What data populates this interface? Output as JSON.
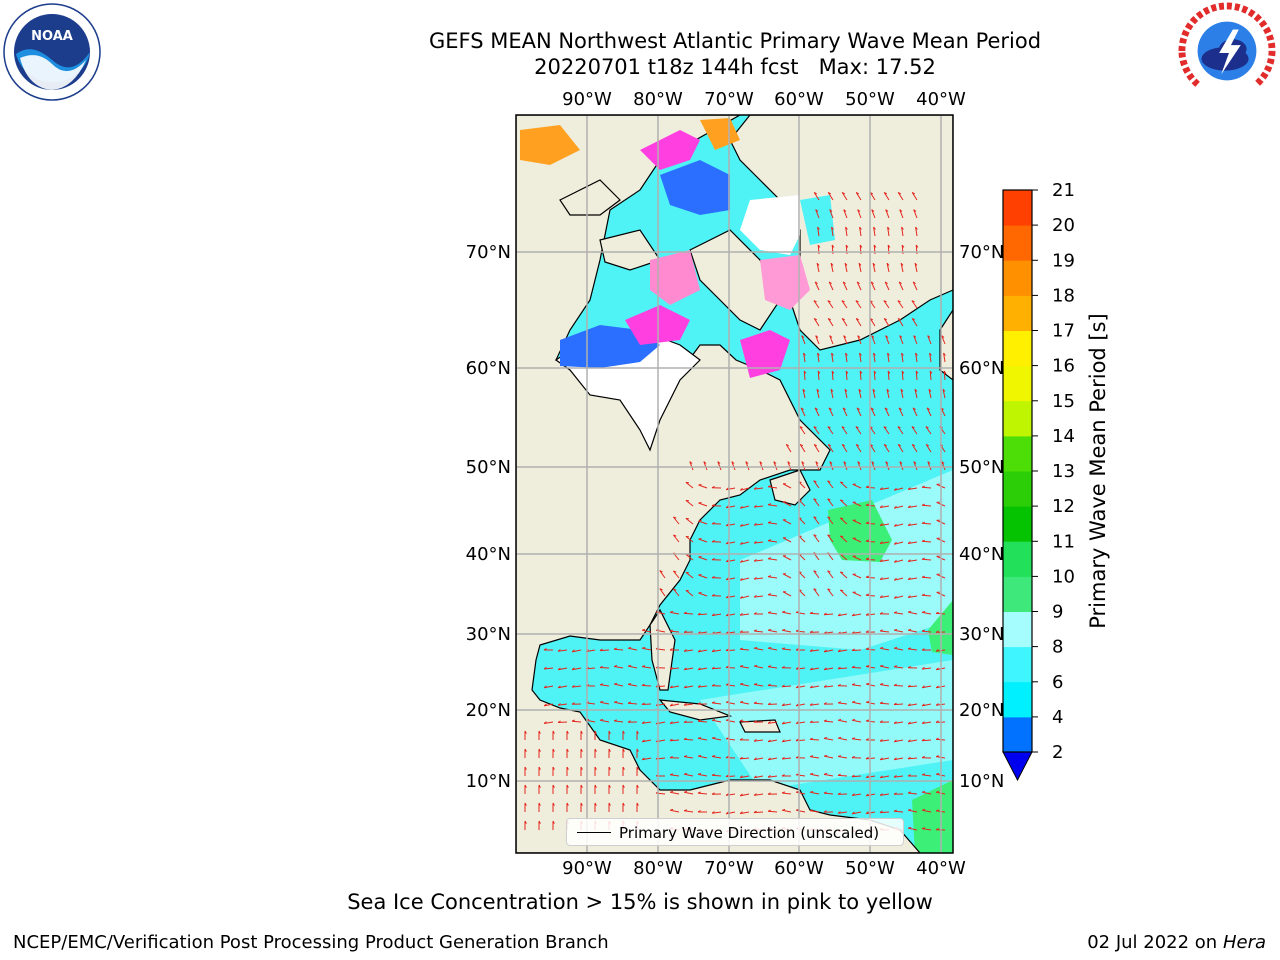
{
  "title": {
    "line1": "GEFS MEAN Northwest Atlantic Primary Wave Mean Period",
    "line2": "20220701 t18z 144h fcst   Max: 17.52"
  },
  "logos": {
    "left": "NOAA",
    "right": "NATIONAL WEATHER SERVICE"
  },
  "map": {
    "lon_ticks": [
      "90°W",
      "80°W",
      "70°W",
      "60°W",
      "50°W",
      "40°W"
    ],
    "lat_ticks": [
      "70°N",
      "60°N",
      "50°N",
      "40°N",
      "30°N",
      "20°N",
      "10°N"
    ],
    "land_color": "#efeedd",
    "ocean_color": "#50f3f5",
    "arrow_color": "#e5241b"
  },
  "legend": {
    "label": "Primary Wave Direction (unscaled)"
  },
  "colorbar": {
    "label": "Primary Wave Mean Period [s]",
    "ticks": [
      "2",
      "4",
      "6",
      "8",
      "9",
      "10",
      "11",
      "12",
      "13",
      "14",
      "15",
      "16",
      "17",
      "18",
      "19",
      "20",
      "21"
    ],
    "colors": [
      "#0072ff",
      "#00f0ff",
      "#3ff5ff",
      "#a5fdfd",
      "#3ee87b",
      "#22e05a",
      "#05c300",
      "#2ccf07",
      "#4ddd07",
      "#bff500",
      "#f0f500",
      "#fff000",
      "#ffb000",
      "#ff9000",
      "#ff6800",
      "#ff4000",
      "#ff0000"
    ],
    "extend_color": "#0000f0"
  },
  "caption": "Sea Ice Concentration > 15% is shown in pink to yellow",
  "footer": {
    "left": "NCEP/EMC/Verification Post Processing Product Generation Branch",
    "right_date": "02 Jul 2022 on ",
    "right_host": "Hera"
  }
}
